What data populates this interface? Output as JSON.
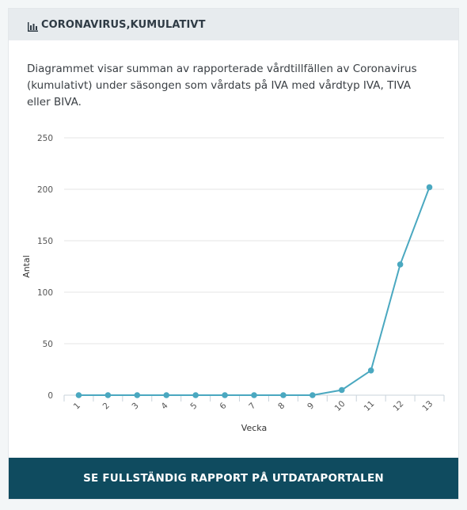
{
  "header": {
    "title": "CORONAVIRUS,KUMULATIVT",
    "icon": "bar-chart-icon"
  },
  "description": "Diagrammet visar summan av rapporterade vårdtillfällen av Coronavirus (kumulativt) under säsongen som vårdats på IVA med vårdtyp IVA, TIVA eller BIVA.",
  "footer": {
    "button_label": "SE FULLSTÄNDIG RAPPORT PÅ UTDATAPORTALEN"
  },
  "colors": {
    "series": "#4aa8c0",
    "footer": "#0f4b5f",
    "header_bg": "#e7ebee"
  },
  "chart_data": {
    "type": "line",
    "x": [
      "1",
      "2",
      "3",
      "4",
      "5",
      "6",
      "7",
      "8",
      "9",
      "10",
      "11",
      "12",
      "13"
    ],
    "series": [
      {
        "values": [
          0,
          0,
          0,
          0,
          0,
          0,
          0,
          0,
          0,
          5,
          24,
          127,
          202
        ]
      }
    ],
    "xlabel": "Vecka",
    "ylabel": "Antal",
    "ylim": [
      0,
      250
    ],
    "yticks": [
      0,
      50,
      100,
      150,
      200,
      250
    ],
    "grid": true,
    "legend": "none"
  }
}
